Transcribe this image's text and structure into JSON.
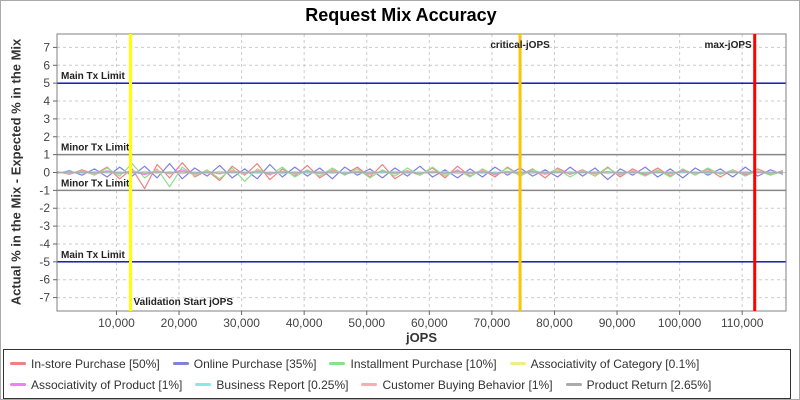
{
  "window": {
    "background": "#ffffff",
    "border_color": "#aaaaaa"
  },
  "chart_data": {
    "type": "line",
    "title": "Request Mix Accuracy",
    "xlabel": "jOPS",
    "ylabel": "Actual % in the Mix - Expected % in the Mix",
    "xlim": [
      500,
      117000
    ],
    "ylim": [
      -7.75,
      7.75
    ],
    "grid": "dashed",
    "grid_color": "#cccccc",
    "plot_border_color": "#808080",
    "legend_position": "bottom",
    "x_ticks": [
      {
        "v": 10000,
        "label": "10,000"
      },
      {
        "v": 20000,
        "label": "20,000"
      },
      {
        "v": 30000,
        "label": "30,000"
      },
      {
        "v": 40000,
        "label": "40,000"
      },
      {
        "v": 50000,
        "label": "50,000"
      },
      {
        "v": 60000,
        "label": "60,000"
      },
      {
        "v": 70000,
        "label": "70,000"
      },
      {
        "v": 80000,
        "label": "80,000"
      },
      {
        "v": 90000,
        "label": "90,000"
      },
      {
        "v": 100000,
        "label": "100,000"
      },
      {
        "v": 110000,
        "label": "110,000"
      }
    ],
    "y_ticks": [
      {
        "v": 7,
        "label": "7"
      },
      {
        "v": 6,
        "label": "6"
      },
      {
        "v": 5,
        "label": "5"
      },
      {
        "v": 4,
        "label": "4"
      },
      {
        "v": 3,
        "label": "3"
      },
      {
        "v": 2,
        "label": "2"
      },
      {
        "v": 1,
        "label": "1"
      },
      {
        "v": 0,
        "label": "0"
      },
      {
        "v": -1,
        "label": "-1"
      },
      {
        "v": -2,
        "label": "-2"
      },
      {
        "v": -3,
        "label": "-3"
      },
      {
        "v": -4,
        "label": "-4"
      },
      {
        "v": -5,
        "label": "-5"
      },
      {
        "v": -6,
        "label": "-6"
      },
      {
        "v": -7,
        "label": "-7"
      }
    ],
    "limit_lines": [
      {
        "label": "Main Tx Limit",
        "value": 5,
        "color": "#0000bb"
      },
      {
        "label": "Minor Tx Limit",
        "value": 1,
        "color": "#888888"
      },
      {
        "label": "Minor Tx Limit",
        "value": -1,
        "color": "#888888"
      },
      {
        "label": "Main Tx Limit",
        "value": -5,
        "color": "#0000bb"
      }
    ],
    "marker_lines": [
      {
        "label": "Validation Start jOPS",
        "value": 12250,
        "color": "#ffff00",
        "label_pos": "bottom-right"
      },
      {
        "label": "critical-jOPS",
        "value": 74500,
        "color": "#fec400",
        "label_pos": "top-center"
      },
      {
        "label": "max-jOPS",
        "value": 112000,
        "color": "#fe0000",
        "label_pos": "top-left"
      }
    ],
    "x": [
      500,
      2500,
      4500,
      6500,
      8500,
      10500,
      12500,
      14500,
      16500,
      18500,
      20500,
      22500,
      24500,
      26500,
      28500,
      30500,
      32500,
      34500,
      36500,
      38500,
      40500,
      42500,
      44500,
      46500,
      48500,
      50500,
      52500,
      54500,
      56500,
      58500,
      60500,
      62500,
      64500,
      66500,
      68500,
      70500,
      72500,
      74500,
      76500,
      78500,
      80500,
      82500,
      84500,
      86500,
      88500,
      90500,
      92500,
      94500,
      96500,
      98500,
      100500,
      102500,
      104500,
      106500,
      108500,
      110500,
      112500,
      114500,
      116500
    ],
    "series": [
      {
        "name": "In-store Purchase [50%]",
        "color": "#f08080",
        "values": [
          0.05,
          -0.1,
          0.15,
          -0.1,
          0.3,
          -0.35,
          0.2,
          -0.9,
          0.45,
          -0.3,
          0.55,
          -0.25,
          0.1,
          -0.45,
          0.35,
          -0.15,
          0.5,
          -0.4,
          0.2,
          -0.2,
          0.4,
          -0.3,
          0.15,
          -0.1,
          0.3,
          -0.25,
          0.45,
          -0.35,
          0.1,
          -0.15,
          0.25,
          -0.3,
          0.35,
          -0.2,
          0.15,
          -0.25,
          0.3,
          -0.15,
          0.2,
          -0.3,
          0.25,
          -0.1,
          0.15,
          -0.2,
          0.3,
          -0.25,
          0.2,
          -0.15,
          0.25,
          -0.2,
          0.15,
          -0.1,
          0.2,
          -0.25,
          0.15,
          -0.15,
          0.2,
          -0.1,
          0.1
        ]
      },
      {
        "name": "Online Purchase [35%]",
        "color": "#8080e0",
        "values": [
          -0.05,
          0.1,
          -0.15,
          0.2,
          -0.25,
          0.3,
          -0.2,
          0.35,
          -0.3,
          0.5,
          -0.35,
          0.25,
          -0.2,
          0.4,
          -0.3,
          0.2,
          -0.35,
          0.45,
          -0.25,
          0.3,
          -0.2,
          0.25,
          -0.35,
          0.3,
          -0.15,
          0.2,
          -0.3,
          0.25,
          -0.2,
          0.35,
          -0.25,
          0.15,
          -0.3,
          0.2,
          -0.25,
          0.3,
          -0.15,
          0.25,
          -0.2,
          0.15,
          -0.25,
          0.3,
          -0.2,
          0.25,
          -0.4,
          0.2,
          -0.15,
          0.3,
          -0.25,
          0.2,
          -0.3,
          0.25,
          -0.15,
          0.2,
          -0.25,
          0.3,
          -0.2,
          0.15,
          -0.1
        ]
      },
      {
        "name": "Installment Purchase [10%]",
        "color": "#8ce08c",
        "values": [
          0.0,
          -0.05,
          0.1,
          -0.15,
          0.25,
          -0.2,
          0.5,
          -0.3,
          0.2,
          -0.8,
          0.3,
          -0.2,
          0.15,
          -0.35,
          0.25,
          -0.5,
          0.2,
          -0.15,
          0.3,
          -0.25,
          0.15,
          -0.2,
          0.25,
          -0.15,
          0.2,
          -0.3,
          0.15,
          -0.2,
          0.25,
          -0.15,
          0.3,
          -0.2,
          0.15,
          -0.25,
          0.2,
          -0.15,
          0.25,
          -0.2,
          0.15,
          -0.1,
          0.2,
          -0.25,
          0.15,
          -0.2,
          0.25,
          -0.15,
          0.1,
          -0.2,
          0.15,
          -0.25,
          0.2,
          -0.15,
          0.25,
          -0.1,
          0.15,
          -0.2,
          0.1,
          -0.15,
          0.05
        ]
      },
      {
        "name": "Associativity of Category [0.1%]",
        "color": "#eeee88",
        "values": [
          0.0,
          0.02,
          -0.02,
          0.03,
          -0.03,
          0.02,
          -0.02,
          0.04,
          -0.04,
          0.03,
          -0.02,
          0.02,
          -0.03,
          0.03,
          -0.02,
          0.02,
          -0.04,
          0.03,
          -0.02,
          0.02,
          -0.03,
          0.02,
          -0.02,
          0.03,
          -0.02,
          0.02,
          -0.03,
          0.02,
          -0.02,
          0.03,
          -0.02,
          0.02,
          -0.03,
          0.02,
          -0.02,
          0.03,
          -0.02,
          0.02,
          -0.03,
          0.02,
          -0.02,
          0.03,
          -0.02,
          0.02,
          -0.03,
          0.02,
          -0.02,
          0.03,
          -0.02,
          0.02,
          -0.03,
          0.02,
          -0.02,
          0.03,
          -0.02,
          0.02,
          -0.03,
          0.02,
          0.0
        ]
      },
      {
        "name": "Associativity of Product [1%]",
        "color": "#ee82ee",
        "values": [
          0.02,
          -0.04,
          0.06,
          -0.08,
          0.1,
          -0.06,
          0.04,
          -0.12,
          0.08,
          -0.05,
          0.15,
          -0.1,
          0.05,
          -0.08,
          0.12,
          -0.06,
          0.08,
          -0.1,
          0.06,
          -0.04,
          0.08,
          -0.06,
          0.1,
          -0.08,
          0.05,
          -0.1,
          0.08,
          -0.06,
          0.1,
          -0.05,
          0.06,
          -0.08,
          0.1,
          -0.06,
          0.08,
          -0.1,
          0.05,
          -0.08,
          0.06,
          -0.1,
          0.08,
          -0.05,
          0.1,
          -0.08,
          0.06,
          -0.1,
          0.08,
          -0.06,
          0.05,
          -0.08,
          0.1,
          -0.06,
          0.08,
          -0.05,
          0.06,
          -0.08,
          0.05,
          -0.06,
          0.04
        ]
      },
      {
        "name": "Business Report [0.25%]",
        "color": "#8ae8e8",
        "values": [
          -0.02,
          0.03,
          -0.04,
          0.05,
          -0.03,
          0.04,
          -0.05,
          0.06,
          -0.04,
          0.05,
          -0.06,
          0.04,
          -0.05,
          0.06,
          -0.04,
          0.03,
          -0.05,
          0.04,
          -0.06,
          0.05,
          -0.04,
          0.06,
          -0.05,
          0.04,
          -0.03,
          0.05,
          -0.04,
          0.06,
          -0.05,
          0.03,
          -0.04,
          0.05,
          -0.06,
          0.04,
          -0.05,
          0.03,
          -0.04,
          0.06,
          -0.05,
          0.04,
          -0.03,
          0.05,
          -0.04,
          0.05,
          -0.06,
          0.04,
          -0.05,
          0.03,
          -0.04,
          0.05,
          -0.03,
          0.04,
          -0.05,
          0.04,
          -0.03,
          0.05,
          -0.04,
          0.03,
          -0.02
        ]
      },
      {
        "name": "Customer Buying Behavior [1%]",
        "color": "#f4b0b0",
        "values": [
          0.04,
          -0.06,
          0.08,
          -0.1,
          0.06,
          -0.08,
          0.12,
          -0.06,
          0.1,
          -0.08,
          0.06,
          -0.12,
          0.08,
          -0.06,
          0.1,
          -0.08,
          0.12,
          -0.06,
          0.08,
          -0.1,
          0.06,
          -0.08,
          0.1,
          -0.06,
          0.08,
          -0.12,
          0.06,
          -0.08,
          0.1,
          -0.06,
          0.08,
          -0.1,
          0.06,
          -0.08,
          0.12,
          -0.06,
          0.08,
          -0.1,
          0.06,
          -0.08,
          0.1,
          -0.06,
          0.08,
          -0.1,
          0.06,
          -0.08,
          0.1,
          -0.06,
          0.08,
          -0.1,
          0.06,
          -0.08,
          0.1,
          -0.06,
          0.08,
          -0.06,
          0.08,
          -0.06,
          0.04
        ]
      },
      {
        "name": "Product Return [2.65%]",
        "color": "#ababab",
        "values": [
          0.01,
          -0.02,
          0.03,
          -0.02,
          0.04,
          -0.03,
          0.02,
          -0.04,
          0.03,
          -0.02,
          0.04,
          -0.03,
          0.02,
          -0.04,
          0.03,
          -0.02,
          0.04,
          -0.03,
          0.02,
          -0.03,
          0.04,
          -0.02,
          0.03,
          -0.04,
          0.02,
          -0.03,
          0.04,
          -0.02,
          0.03,
          -0.04,
          0.02,
          -0.03,
          0.04,
          -0.02,
          0.03,
          -0.04,
          0.02,
          -0.03,
          0.04,
          -0.02,
          0.03,
          -0.04,
          0.02,
          -0.03,
          0.04,
          -0.02,
          0.03,
          -0.04,
          0.02,
          -0.03,
          0.04,
          -0.02,
          0.03,
          -0.04,
          0.02,
          -0.03,
          0.02,
          -0.02,
          0.01
        ]
      }
    ]
  }
}
